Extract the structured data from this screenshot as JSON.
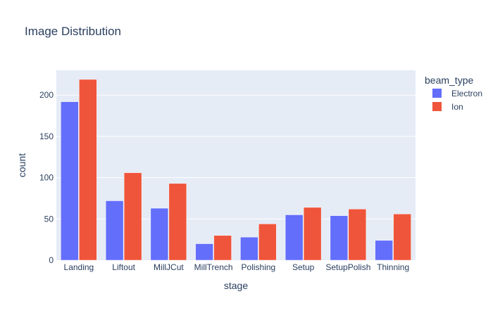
{
  "chart_data": {
    "type": "bar",
    "title": "Image Distribution",
    "xlabel": "stage",
    "ylabel": "count",
    "categories": [
      "Landing",
      "Liftout",
      "MillJCut",
      "MillTrench",
      "Polishing",
      "Setup",
      "SetupPolish",
      "Thinning"
    ],
    "series": [
      {
        "name": "Electron",
        "color": "#636efa",
        "values": [
          192,
          72,
          63,
          20,
          28,
          55,
          54,
          24
        ]
      },
      {
        "name": "Ion",
        "color": "#ef553b",
        "values": [
          219,
          106,
          93,
          30,
          44,
          64,
          62,
          56
        ]
      }
    ],
    "ylim": [
      0,
      230
    ],
    "yticks": [
      0,
      50,
      100,
      150,
      200
    ],
    "grid": true,
    "legend": {
      "title": "beam_type",
      "placement": "top-right"
    },
    "plot_background": "#e5ecf6"
  }
}
